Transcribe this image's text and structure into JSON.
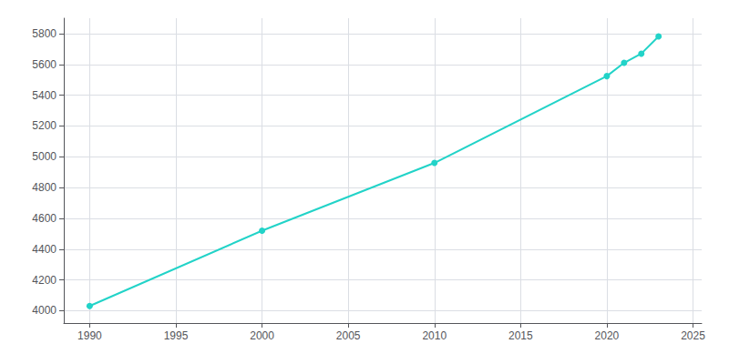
{
  "chart_data": {
    "type": "line",
    "x": [
      1990,
      2000,
      2010,
      2020,
      2021,
      2022,
      2023
    ],
    "values": [
      4031,
      4520,
      4960,
      5524,
      5610,
      5670,
      5782
    ],
    "color": "#22d3c8",
    "marker": "circle",
    "xlim": [
      1988.5,
      2025.5
    ],
    "ylim": [
      3920,
      5900
    ],
    "xticks": [
      1990,
      1995,
      2000,
      2005,
      2010,
      2015,
      2020,
      2025
    ],
    "yticks": [
      4000,
      4200,
      4400,
      4600,
      4800,
      5000,
      5200,
      5400,
      5600,
      5800
    ],
    "grid": true
  }
}
